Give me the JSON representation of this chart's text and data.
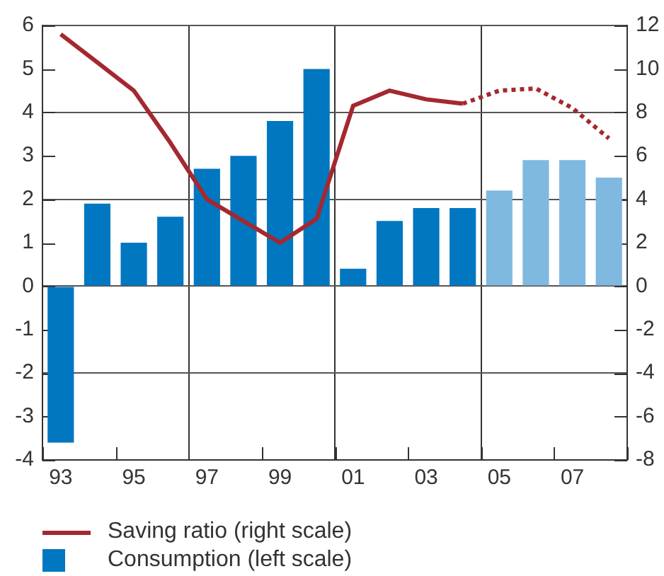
{
  "chart_data": {
    "type": "bar",
    "categories": [
      "93",
      null,
      "95",
      null,
      "97",
      null,
      "99",
      null,
      "01",
      null,
      "03",
      null,
      "05",
      null,
      "07",
      null
    ],
    "series": [
      {
        "name": "Saving ratio (right scale)",
        "type": "line",
        "axis": "y2",
        "color": "#a4282f",
        "line_style": "solid",
        "values": [
          11.6,
          10.3,
          9.0,
          6.6,
          4.0,
          3.0,
          2.0,
          3.1,
          8.3,
          9.0,
          8.6,
          8.4,
          null,
          null,
          null,
          null
        ]
      },
      {
        "type": "line",
        "axis": "y2",
        "color": "#a4282f",
        "line_style": "dotted",
        "values": [
          null,
          null,
          null,
          null,
          null,
          null,
          null,
          null,
          null,
          null,
          null,
          8.4,
          9.0,
          9.1,
          8.2,
          6.8
        ]
      },
      {
        "name": "Consumption (left scale)",
        "color": "#0077c0",
        "colors": [
          "#0077c0",
          "#0077c0",
          "#0077c0",
          "#0077c0",
          "#0077c0",
          "#0077c0",
          "#0077c0",
          "#0077c0",
          "#0077c0",
          "#0077c0",
          "#0077c0",
          "#0077c0",
          "#7fb9e0",
          "#7fb9e0",
          "#7fb9e0",
          "#7fb9e0"
        ],
        "values": [
          -3.6,
          1.9,
          1.0,
          1.6,
          2.7,
          3.0,
          3.8,
          5.0,
          0.4,
          1.5,
          1.8,
          1.8,
          2.2,
          2.9,
          2.9,
          2.5
        ]
      }
    ],
    "ylim": [
      -4,
      6
    ],
    "yticks": [
      -4,
      -3,
      -2,
      -1,
      0,
      1,
      2,
      3,
      4,
      5,
      6
    ],
    "y2lim": [
      -8,
      12
    ],
    "y2ticks": [
      -8,
      -6,
      -4,
      -2,
      0,
      2,
      4,
      6,
      8,
      10,
      12
    ],
    "grid": true,
    "legend": "bottom left",
    "marker": "none"
  }
}
